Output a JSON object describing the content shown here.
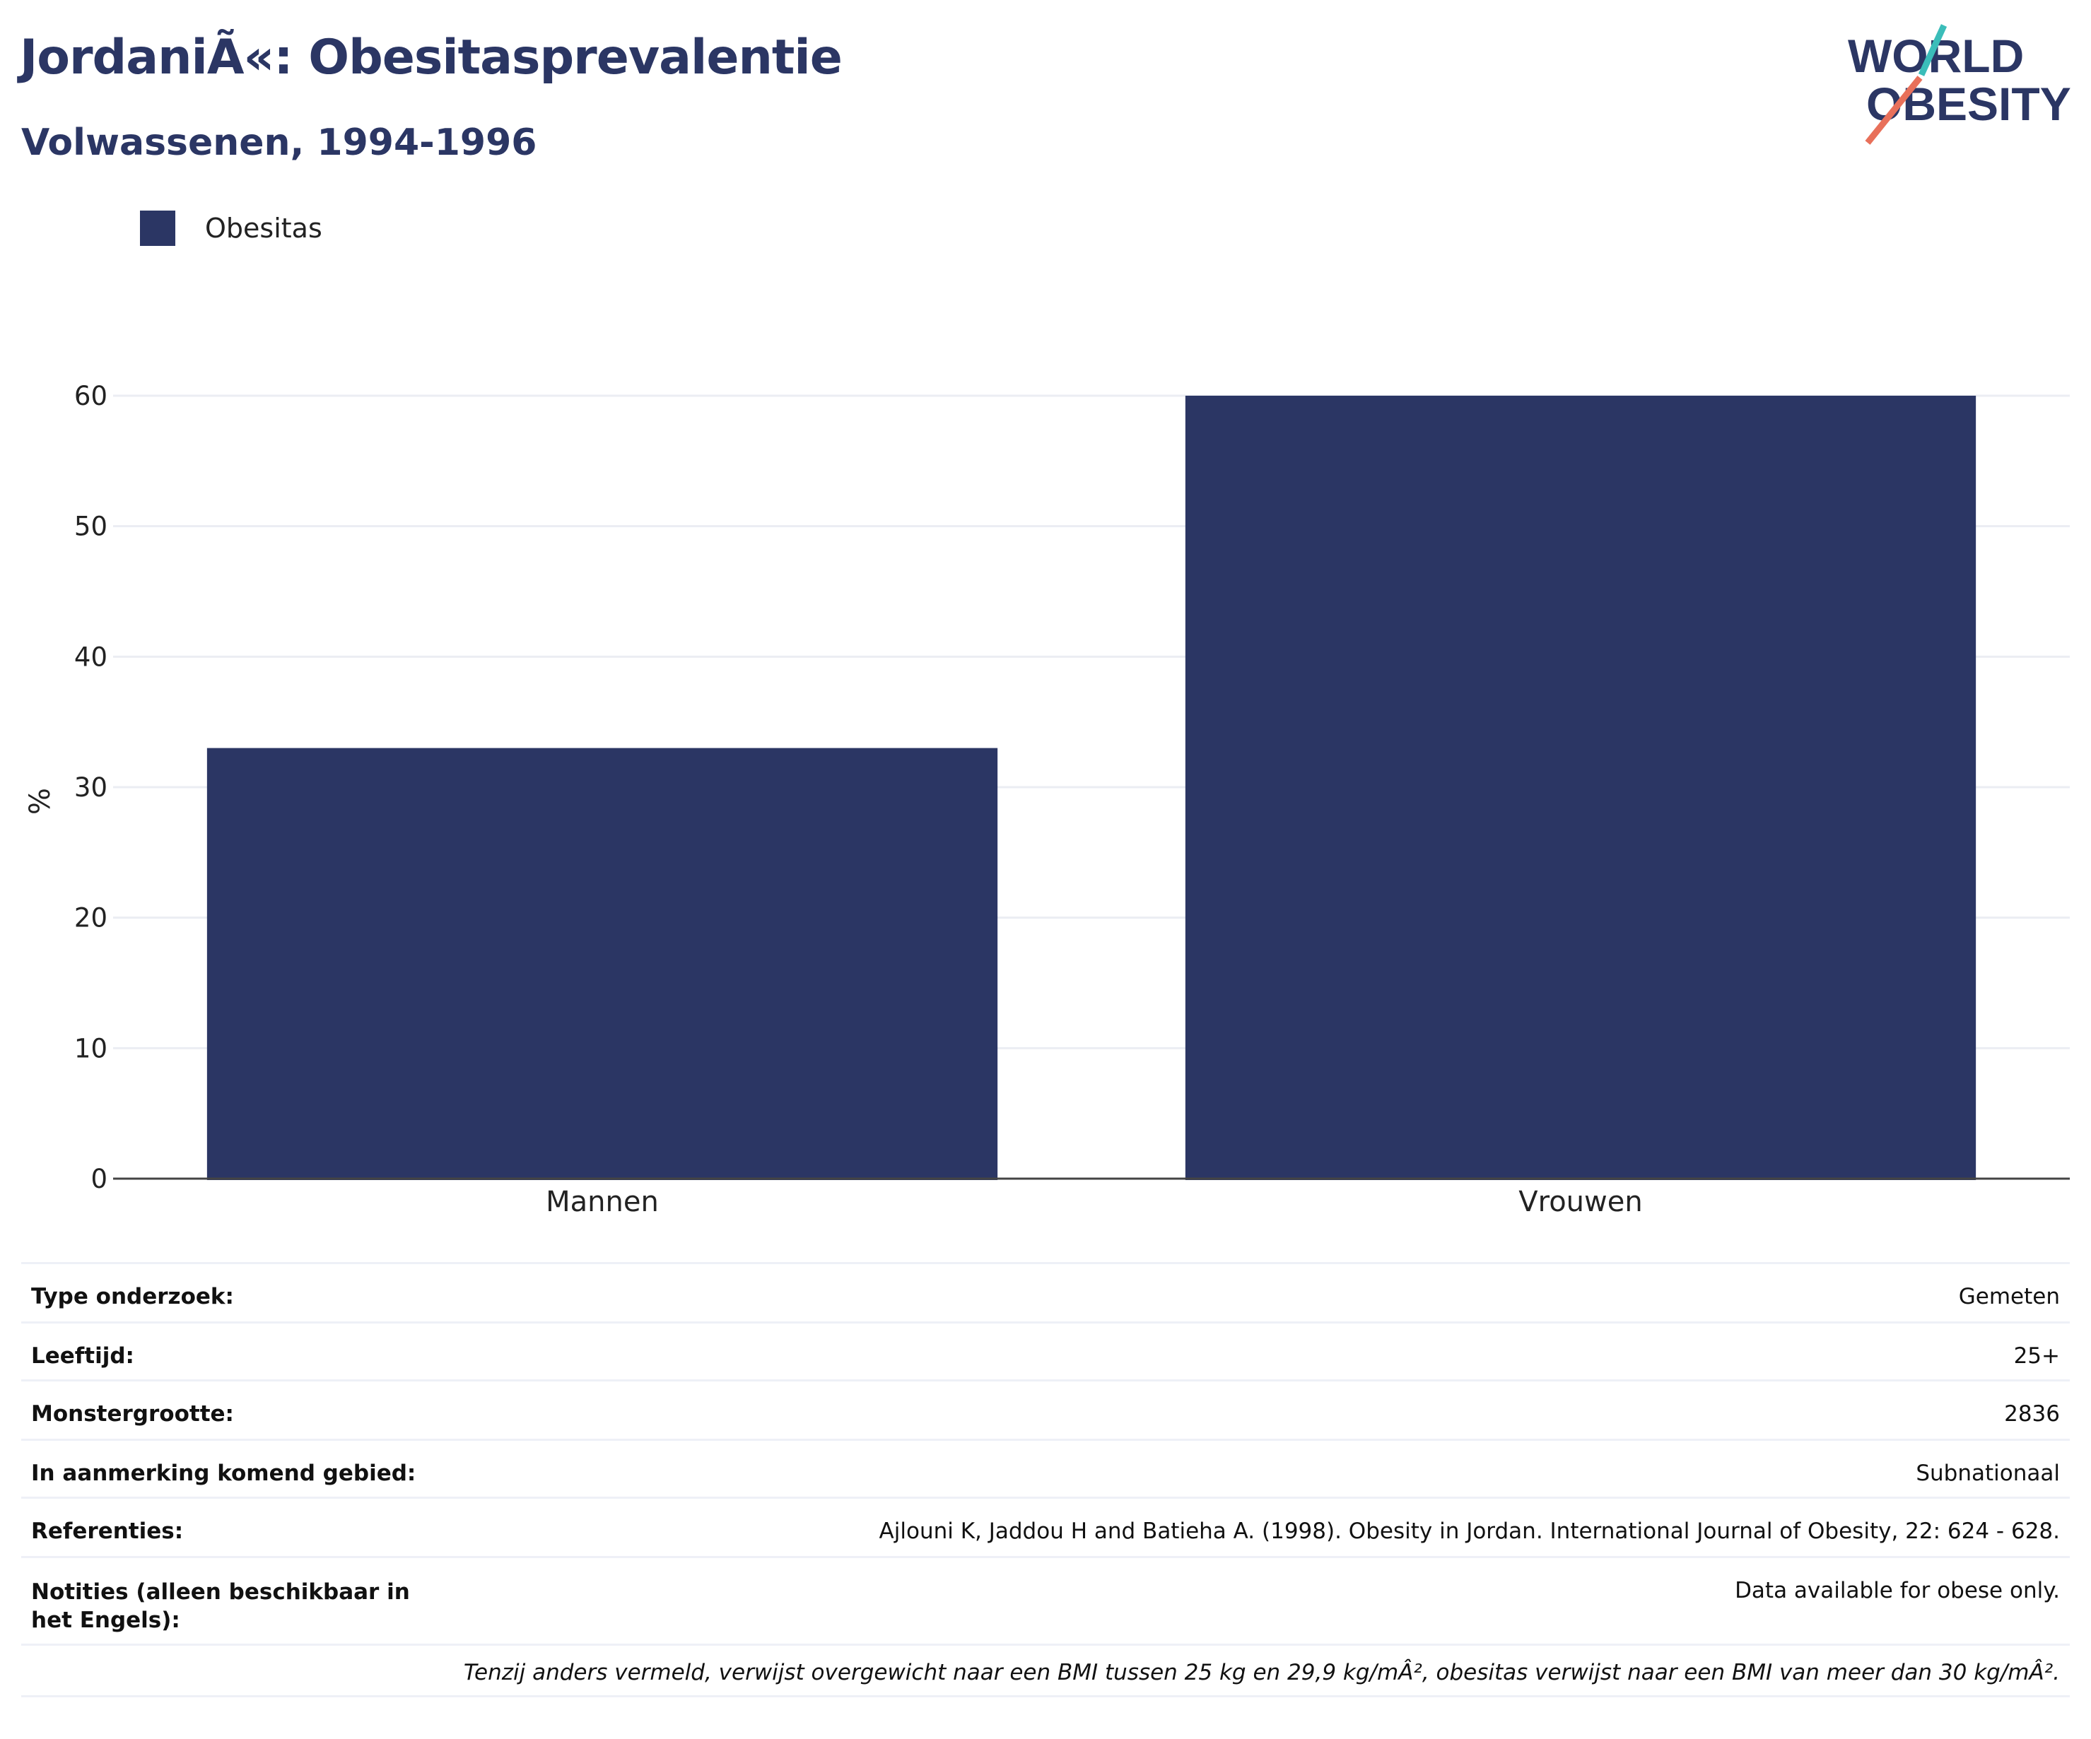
{
  "header": {
    "title": "JordaniÃ«: Obesitasprevalentie",
    "subtitle": "Volwassenen, 1994-1996"
  },
  "logo": {
    "line1": "WORLD",
    "line2": "OBESITY",
    "colors": {
      "text": "#2b3664",
      "slash_top": "#3bbdb9",
      "slash_bottom": "#e8705a"
    }
  },
  "legend": {
    "label": "Obesitas",
    "color": "#2b3664"
  },
  "chart_data": {
    "type": "bar",
    "categories": [
      "Mannen",
      "Vrouwen"
    ],
    "series": [
      {
        "name": "Obesitas",
        "values": [
          33,
          60
        ],
        "color": "#2b3664"
      }
    ],
    "title": "",
    "xlabel": "",
    "ylabel": "%",
    "ylim": [
      0,
      60
    ],
    "yticks": [
      0,
      10,
      20,
      30,
      40,
      50,
      60
    ],
    "grid": true,
    "legend_position": "top-left"
  },
  "table": {
    "rows": [
      {
        "label": "Type onderzoek:",
        "value": "Gemeten"
      },
      {
        "label": "Leeftijd:",
        "value": "25+"
      },
      {
        "label": "Monstergrootte:",
        "value": "2836"
      },
      {
        "label": "In aanmerking komend gebied:",
        "value": "Subnationaal"
      },
      {
        "label": "Referenties:",
        "value": "Ajlouni K, Jaddou H and Batieha A. (1998). Obesity in Jordan. International Journal of Obesity, 22: 624 - 628."
      },
      {
        "label": "Notities (alleen beschikbaar in het Engels):",
        "value": "Data available for obese only."
      }
    ],
    "footnote": "Tenzij anders vermeld, verwijst overgewicht naar een BMI tussen 25 kg en 29,9 kg/mÂ², obesitas verwijst naar een BMI van meer dan 30 kg/mÂ²."
  }
}
